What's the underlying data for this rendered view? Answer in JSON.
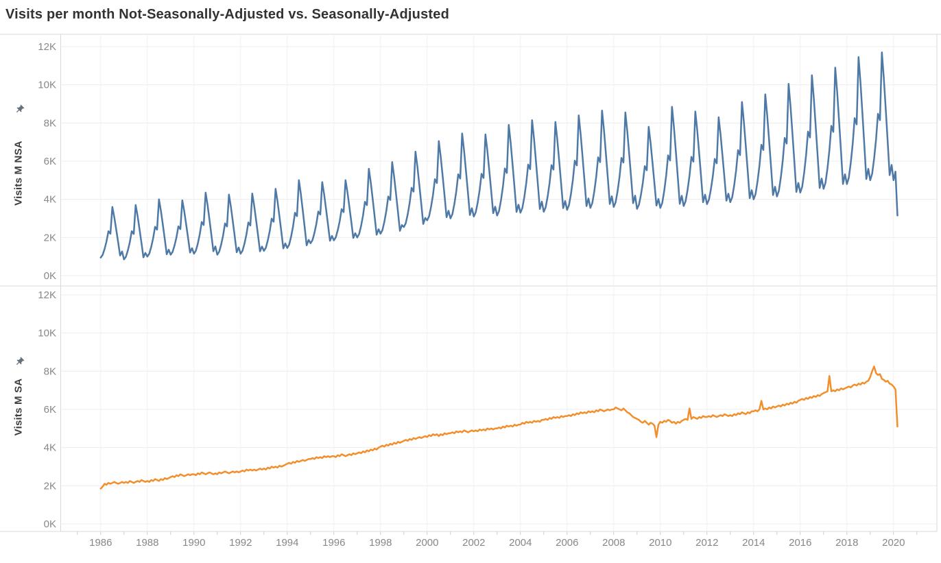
{
  "title": "Visits per month Not-Seasonally-Adjusted vs. Seasonally-Adjusted",
  "colors": {
    "nsa_line": "#4e79a7",
    "sa_line": "#f28e2b",
    "h_gridline": "#ececec",
    "v_gridline": "#f1f1f1",
    "panel_border": "#d9d9d9",
    "tick_mark": "#d0d0d0",
    "tick_label": "#878787",
    "axis_title": "#3d3d3d",
    "pin_icon": "#66717f",
    "title_text": "#323232",
    "background": "#ffffff"
  },
  "y_axis": {
    "tick_labels": [
      "0K",
      "2K",
      "4K",
      "6K",
      "8K",
      "10K",
      "12K"
    ],
    "min": 0,
    "max": 12000,
    "step": 2000
  },
  "x_axis": {
    "tick_labels": [
      "1986",
      "1988",
      "1990",
      "1992",
      "1994",
      "1996",
      "1998",
      "2000",
      "2002",
      "2004",
      "2006",
      "2008",
      "2010",
      "2012",
      "2014",
      "2016",
      "2018",
      "2020"
    ],
    "label_step_years": 2,
    "minor_tick_every_year": true
  },
  "panels": [
    {
      "id": "nsa",
      "axis_title": "Visits M NSA",
      "pinned_axis": true
    },
    {
      "id": "sa",
      "axis_title": "Visits M SA",
      "pinned_axis": true
    }
  ],
  "chart_data": [
    {
      "type": "line",
      "name": "Visits M NSA",
      "panel": "top",
      "color": "#4e79a7",
      "units": "visits per month (K = thousands)",
      "ylim": [
        0,
        12
      ],
      "xlim": [
        1984.3,
        2021.86
      ],
      "x_start_year": 1986,
      "points_per_year": 12,
      "seasonal_shape": [
        0,
        0.05,
        0.17,
        0.32,
        0.52,
        0.47,
        1,
        0.8,
        0.55,
        0.3,
        0.04,
        0.12
      ],
      "year_trough_peak": [
        [
          1986,
          0.95,
          3.6
        ],
        [
          1987,
          0.85,
          3.7
        ],
        [
          1988,
          1.0,
          4.0
        ],
        [
          1989,
          1.1,
          3.95
        ],
        [
          1990,
          1.15,
          4.35
        ],
        [
          1991,
          1.1,
          4.25
        ],
        [
          1992,
          1.15,
          4.3
        ],
        [
          1993,
          1.3,
          4.55
        ],
        [
          1994,
          1.45,
          5.0
        ],
        [
          1995,
          1.7,
          4.9
        ],
        [
          1996,
          1.85,
          5.0
        ],
        [
          1997,
          2.0,
          5.6
        ],
        [
          1998,
          2.2,
          5.95
        ],
        [
          1999,
          2.55,
          6.5
        ],
        [
          2000,
          2.9,
          7.05
        ],
        [
          2001,
          3.0,
          7.45
        ],
        [
          2002,
          3.1,
          7.4
        ],
        [
          2003,
          3.15,
          7.9
        ],
        [
          2004,
          3.3,
          8.15
        ],
        [
          2005,
          3.35,
          8.05
        ],
        [
          2006,
          3.45,
          8.4
        ],
        [
          2007,
          3.55,
          8.65
        ],
        [
          2008,
          3.6,
          8.55
        ],
        [
          2009,
          3.5,
          7.8
        ],
        [
          2010,
          3.55,
          8.85
        ],
        [
          2011,
          3.65,
          8.6
        ],
        [
          2012,
          3.75,
          8.3
        ],
        [
          2013,
          3.85,
          9.1
        ],
        [
          2014,
          4.0,
          9.5
        ],
        [
          2015,
          4.15,
          10.05
        ],
        [
          2016,
          4.35,
          10.5
        ],
        [
          2017,
          4.55,
          10.9
        ],
        [
          2018,
          4.8,
          11.45
        ],
        [
          2019,
          5.0,
          11.7
        ]
      ],
      "final_year": 2020,
      "final_months_values": [
        5.0,
        5.45,
        3.15
      ]
    },
    {
      "type": "line",
      "name": "Visits M SA",
      "panel": "bottom",
      "color": "#f28e2b",
      "units": "visits per month (K = thousands)",
      "ylim": [
        0,
        12
      ],
      "xlim": [
        1984.3,
        2021.86
      ],
      "x_start_year": 1986,
      "points_per_year": 12,
      "monthly_values": [
        1.85,
        1.95,
        2.1,
        2.05,
        2.15,
        2.1,
        2.15,
        2.2,
        2.15,
        2.1,
        2.15,
        2.2,
        2.15,
        2.2,
        2.15,
        2.25,
        2.2,
        2.15,
        2.2,
        2.25,
        2.2,
        2.3,
        2.25,
        2.2,
        2.25,
        2.2,
        2.3,
        2.25,
        2.35,
        2.3,
        2.25,
        2.35,
        2.3,
        2.4,
        2.35,
        2.4,
        2.45,
        2.5,
        2.45,
        2.55,
        2.5,
        2.6,
        2.55,
        2.5,
        2.55,
        2.6,
        2.55,
        2.6,
        2.6,
        2.55,
        2.65,
        2.6,
        2.7,
        2.65,
        2.6,
        2.65,
        2.7,
        2.65,
        2.6,
        2.65,
        2.6,
        2.7,
        2.65,
        2.7,
        2.75,
        2.7,
        2.65,
        2.7,
        2.75,
        2.7,
        2.75,
        2.7,
        2.75,
        2.8,
        2.75,
        2.85,
        2.8,
        2.85,
        2.8,
        2.85,
        2.8,
        2.85,
        2.9,
        2.85,
        2.9,
        2.85,
        2.95,
        2.9,
        3.0,
        2.95,
        3.0,
        2.95,
        3.05,
        3.0,
        3.05,
        3.1,
        3.15,
        3.2,
        3.15,
        3.25,
        3.2,
        3.3,
        3.25,
        3.3,
        3.35,
        3.3,
        3.35,
        3.4,
        3.4,
        3.45,
        3.4,
        3.5,
        3.45,
        3.5,
        3.45,
        3.55,
        3.5,
        3.55,
        3.5,
        3.55,
        3.55,
        3.5,
        3.6,
        3.55,
        3.65,
        3.6,
        3.55,
        3.6,
        3.65,
        3.6,
        3.7,
        3.65,
        3.7,
        3.75,
        3.7,
        3.8,
        3.75,
        3.85,
        3.8,
        3.9,
        3.85,
        3.95,
        3.9,
        4.0,
        4.05,
        4.1,
        4.05,
        4.15,
        4.1,
        4.2,
        4.15,
        4.25,
        4.2,
        4.3,
        4.25,
        4.3,
        4.35,
        4.4,
        4.35,
        4.45,
        4.4,
        4.5,
        4.45,
        4.5,
        4.55,
        4.5,
        4.55,
        4.6,
        4.55,
        4.65,
        4.6,
        4.7,
        4.65,
        4.7,
        4.6,
        4.7,
        4.65,
        4.75,
        4.7,
        4.75,
        4.75,
        4.8,
        4.75,
        4.85,
        4.8,
        4.85,
        4.8,
        4.9,
        4.85,
        4.8,
        4.85,
        4.9,
        4.85,
        4.9,
        4.85,
        4.95,
        4.9,
        4.95,
        4.9,
        5.0,
        4.95,
        5.0,
        4.95,
        5.0,
        5.0,
        5.05,
        5.0,
        5.1,
        5.05,
        5.15,
        5.1,
        5.15,
        5.1,
        5.2,
        5.15,
        5.2,
        5.2,
        5.3,
        5.25,
        5.35,
        5.3,
        5.35,
        5.3,
        5.4,
        5.35,
        5.4,
        5.35,
        5.45,
        5.45,
        5.5,
        5.45,
        5.55,
        5.5,
        5.6,
        5.55,
        5.6,
        5.55,
        5.65,
        5.6,
        5.65,
        5.65,
        5.7,
        5.65,
        5.75,
        5.7,
        5.8,
        5.75,
        5.85,
        5.8,
        5.85,
        5.8,
        5.9,
        5.85,
        5.9,
        5.85,
        5.95,
        5.9,
        6.0,
        5.95,
        5.9,
        5.95,
        6.0,
        5.95,
        6.0,
        6.0,
        6.1,
        6.05,
        6.0,
        5.95,
        6.05,
        5.95,
        5.85,
        5.8,
        5.7,
        5.6,
        5.55,
        5.5,
        5.45,
        5.35,
        5.3,
        5.4,
        5.3,
        5.2,
        5.3,
        5.25,
        5.15,
        4.55,
        5.2,
        5.35,
        5.3,
        5.4,
        5.35,
        5.45,
        5.4,
        5.3,
        5.35,
        5.25,
        5.35,
        5.3,
        5.4,
        5.45,
        5.5,
        5.45,
        6.05,
        5.5,
        5.6,
        5.55,
        5.5,
        5.6,
        5.55,
        5.65,
        5.6,
        5.6,
        5.65,
        5.6,
        5.7,
        5.65,
        5.6,
        5.65,
        5.7,
        5.65,
        5.75,
        5.7,
        5.65,
        5.7,
        5.65,
        5.75,
        5.7,
        5.8,
        5.75,
        5.85,
        5.8,
        5.75,
        5.85,
        5.8,
        5.9,
        5.9,
        5.95,
        5.9,
        6.0,
        6.45,
        6.0,
        6.05,
        6.0,
        6.1,
        6.05,
        6.15,
        6.1,
        6.15,
        6.2,
        6.15,
        6.25,
        6.2,
        6.3,
        6.25,
        6.35,
        6.3,
        6.4,
        6.35,
        6.45,
        6.5,
        6.55,
        6.5,
        6.6,
        6.55,
        6.65,
        6.6,
        6.7,
        6.65,
        6.75,
        6.7,
        6.8,
        6.85,
        6.9,
        6.95,
        7.75,
        6.95,
        7.0,
        6.95,
        7.05,
        7.0,
        7.1,
        7.05,
        7.1,
        7.15,
        7.2,
        7.15,
        7.25,
        7.3,
        7.25,
        7.35,
        7.3,
        7.4,
        7.35,
        7.45,
        7.5,
        7.7,
        8.0,
        8.25,
        7.9,
        7.8,
        7.85,
        7.6,
        7.55,
        7.45,
        7.5,
        7.35,
        7.3,
        7.2,
        7.05,
        5.1
      ]
    }
  ]
}
